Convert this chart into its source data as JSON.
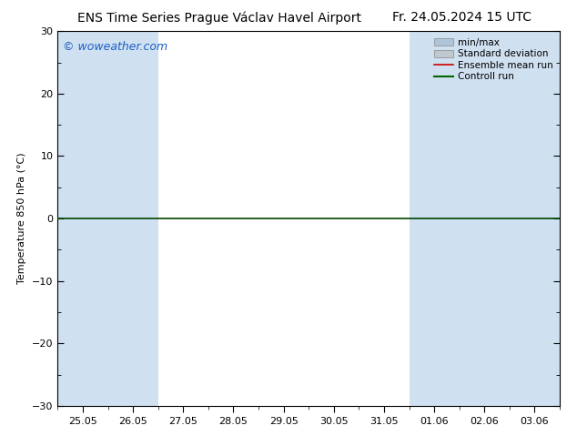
{
  "title": "ENS Time Series Prague Václav Havel Airport",
  "date_str": "Fr. 24.05.2024 15 UTC",
  "ylabel": "Temperature 850 hPa (°C)",
  "ylim": [
    -30,
    30
  ],
  "yticks": [
    -30,
    -20,
    -10,
    0,
    10,
    20,
    30
  ],
  "n_cols": 10,
  "xtick_labels": [
    "25.05",
    "26.05",
    "27.05",
    "28.05",
    "29.05",
    "30.05",
    "31.05",
    "01.06",
    "02.06",
    "03.06"
  ],
  "shaded_columns": [
    0,
    1,
    7,
    8,
    9
  ],
  "shade_color": "#cfe0f0",
  "background_color": "#ffffff",
  "watermark": "© woweather.com",
  "legend_items": [
    {
      "label": "min/max",
      "color": "#b0c4d8",
      "lw": 1.2,
      "style": "-",
      "type": "box"
    },
    {
      "label": "Standard deviation",
      "color": "#c0c8d0",
      "lw": 1.2,
      "style": "-",
      "type": "box"
    },
    {
      "label": "Ensemble mean run",
      "color": "#cc0000",
      "lw": 1.2,
      "style": "-",
      "type": "line"
    },
    {
      "label": "Controll run",
      "color": "#006600",
      "lw": 1.5,
      "style": "-",
      "type": "line"
    }
  ],
  "zero_line_color": "#004400",
  "zero_line_lw": 1.2,
  "title_fontsize": 10,
  "date_fontsize": 10,
  "watermark_fontsize": 9,
  "axis_fontsize": 8,
  "tick_fontsize": 8,
  "legend_fontsize": 7.5
}
